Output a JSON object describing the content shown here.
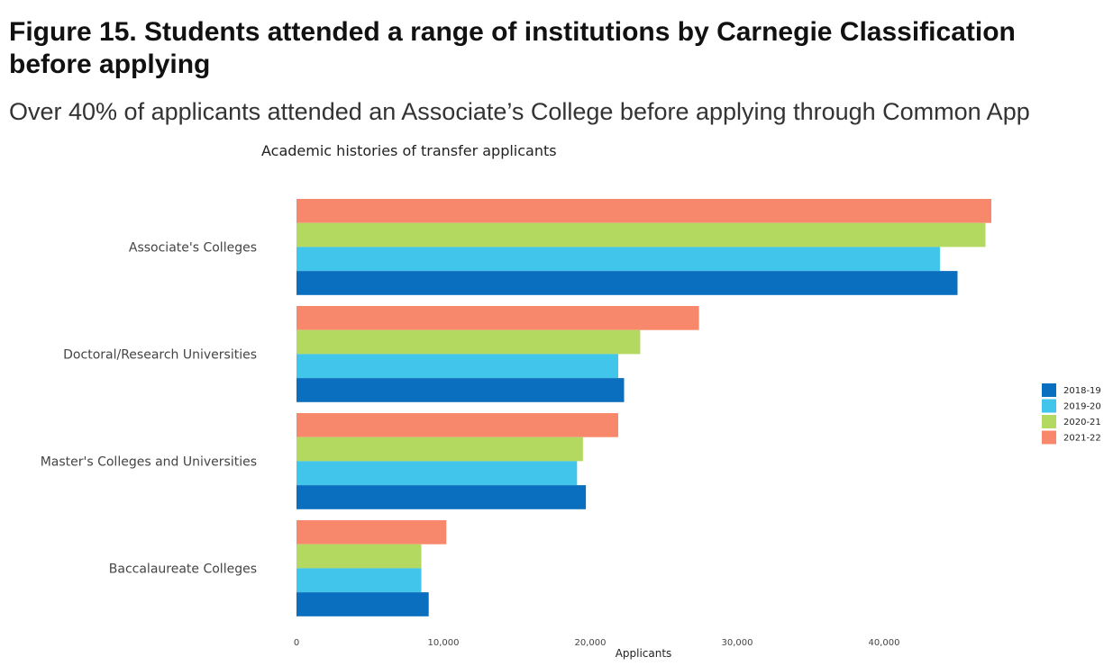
{
  "figure": {
    "title": "Figure 15. Students attended a range of institutions by Carnegie Classification before applying",
    "subtitle": "Over 40% of applicants attended an Associate’s College before applying through Common App"
  },
  "chart_data": {
    "type": "bar",
    "orientation": "horizontal",
    "title": "Academic histories of transfer applicants",
    "xlabel": "Applicants",
    "ylabel": "",
    "xlim": [
      0,
      48000
    ],
    "xticks": [
      0,
      10000,
      20000,
      30000,
      40000
    ],
    "xtick_labels": [
      "0",
      "10,000",
      "20,000",
      "30,000",
      "40,000"
    ],
    "categories": [
      "Associate's Colleges",
      "Doctoral/Research Universities",
      "Master's Colleges and Universities",
      "Baccalaureate Colleges"
    ],
    "series": [
      {
        "name": "2018-19",
        "color": "#0b6fbf",
        "values": [
          45000,
          22300,
          19700,
          9000
        ]
      },
      {
        "name": "2019-20",
        "color": "#41c5ea",
        "values": [
          43800,
          21900,
          19100,
          8500
        ]
      },
      {
        "name": "2020-21",
        "color": "#b4d961",
        "values": [
          46900,
          23400,
          19500,
          8500
        ]
      },
      {
        "name": "2021-22",
        "color": "#f7886c",
        "values": [
          47300,
          27400,
          21900,
          10200
        ]
      }
    ],
    "legend_position": "right",
    "grid": false
  }
}
